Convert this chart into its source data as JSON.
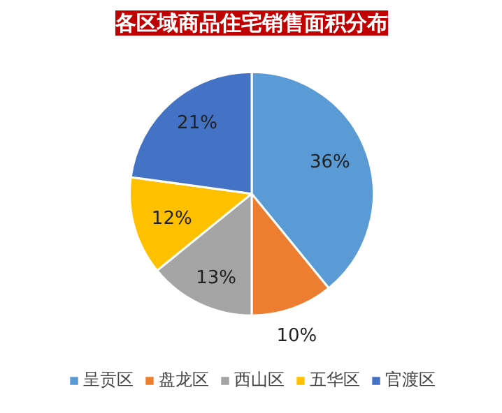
{
  "chart_data": {
    "type": "pie",
    "title": "各区域商品住宅销售面积分布",
    "categories": [
      "呈贡区",
      "盘龙区",
      "西山区",
      "五华区",
      "官渡区"
    ],
    "values": [
      36,
      10,
      13,
      12,
      21
    ],
    "colors": [
      "#5b9bd5",
      "#ed7d31",
      "#a5a5a5",
      "#ffc000",
      "#4472c4"
    ],
    "value_labels": [
      "36%",
      "10%",
      "13%",
      "12%",
      "21%"
    ],
    "legend": "bottom"
  }
}
